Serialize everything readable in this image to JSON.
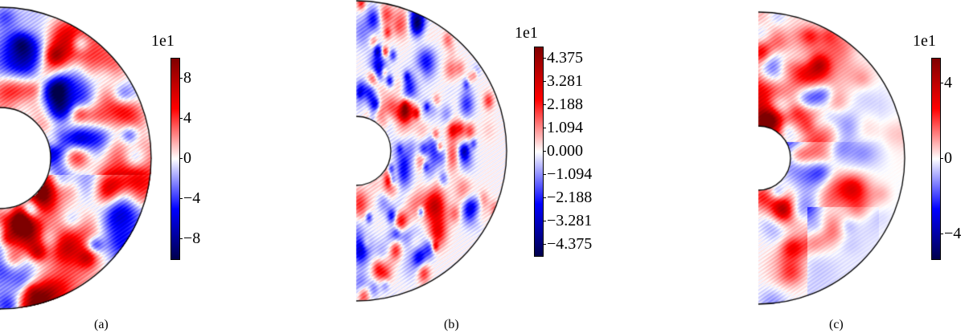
{
  "chart_data": [
    {
      "type": "heatmap",
      "panel_label": "(a)",
      "geometry": "half-annulus",
      "colormap": "seismic",
      "colorbar": {
        "multiplier": "1e1",
        "range": [
          -10,
          10
        ],
        "ticks": [
          8,
          4,
          0,
          -4,
          -8
        ],
        "tick_labels": [
          "8",
          "4",
          "0",
          "−4",
          "−8"
        ]
      }
    },
    {
      "type": "heatmap",
      "panel_label": "(b)",
      "geometry": "half-annulus",
      "colormap": "seismic",
      "colorbar": {
        "multiplier": "1e1",
        "range": [
          -4.9,
          4.9
        ],
        "ticks": [
          4.375,
          3.281,
          2.188,
          1.094,
          0,
          -1.094,
          -2.188,
          -3.281,
          -4.375
        ],
        "tick_labels": [
          "4.375",
          "3.281",
          "2.188",
          "1.094",
          "0.000",
          "−1.094",
          "−2.188",
          "−3.281",
          "−4.375"
        ]
      }
    },
    {
      "type": "heatmap",
      "panel_label": "(c)",
      "geometry": "half-annulus",
      "colormap": "seismic",
      "colorbar": {
        "multiplier": "1e1",
        "range": [
          -5.3,
          5.3
        ],
        "ticks": [
          4,
          0,
          -4
        ],
        "tick_labels": [
          "4",
          "0",
          "−4"
        ]
      }
    }
  ]
}
